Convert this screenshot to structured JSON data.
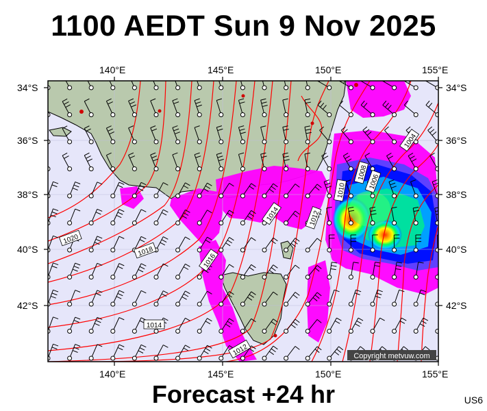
{
  "title": "1100 AEDT Sun 9 Nov 2025",
  "subtitle": "Forecast +24 hr",
  "product_code": "US6",
  "copyright": "Copyright metvuw.com",
  "map": {
    "lon_labels": [
      "140°E",
      "145°E",
      "150°E",
      "155°E"
    ],
    "lat_labels": [
      "34°S",
      "36°S",
      "38°S",
      "40°S",
      "42°S"
    ],
    "isobar_labels": [
      "1004",
      "1006",
      "1008",
      "1010",
      "1012",
      "1012",
      "1014",
      "1014",
      "1016",
      "1018",
      "1020"
    ],
    "colors": {
      "sea": "#e6e6fa",
      "land": "#b9c9ad",
      "isobar": "#ff0000",
      "rain_light": "#ff00ff",
      "rain_moderate": "#0000ff",
      "rain_heavy": "#00ff00",
      "rain_extreme": "#ff2000"
    }
  }
}
